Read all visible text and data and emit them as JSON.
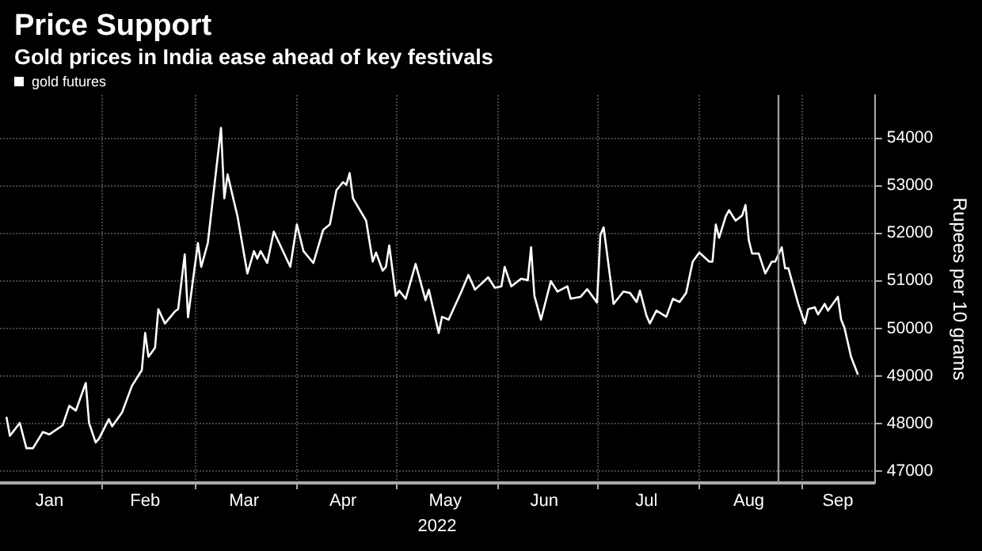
{
  "chart_data": {
    "type": "line",
    "title": "Price Support",
    "subtitle": "Gold prices in India ease ahead of key festivals",
    "xlabel": "2022",
    "ylabel": "Rupees per 10 grams",
    "x": [
      "2022-01-03",
      "2022-01-04",
      "2022-01-07",
      "2022-01-09",
      "2022-01-11",
      "2022-01-14",
      "2022-01-16",
      "2022-01-20",
      "2022-01-22",
      "2022-01-24",
      "2022-01-27",
      "2022-01-28",
      "2022-01-30",
      "2022-01-31",
      "2022-02-03",
      "2022-02-04",
      "2022-02-07",
      "2022-02-10",
      "2022-02-13",
      "2022-02-14",
      "2022-02-15",
      "2022-02-17",
      "2022-02-18",
      "2022-02-20",
      "2022-02-23",
      "2022-02-24",
      "2022-02-26",
      "2022-02-27",
      "2022-03-02",
      "2022-03-03",
      "2022-03-05",
      "2022-03-09",
      "2022-03-10",
      "2022-03-11",
      "2022-03-14",
      "2022-03-17",
      "2022-03-19",
      "2022-03-20",
      "2022-03-21",
      "2022-03-23",
      "2022-03-25",
      "2022-03-30",
      "2022-04-01",
      "2022-04-03",
      "2022-04-06",
      "2022-04-09",
      "2022-04-11",
      "2022-04-13",
      "2022-04-15",
      "2022-04-16",
      "2022-04-17",
      "2022-04-18",
      "2022-04-22",
      "2022-04-24",
      "2022-04-25",
      "2022-04-27",
      "2022-04-28",
      "2022-04-29",
      "2022-05-01",
      "2022-05-02",
      "2022-05-04",
      "2022-05-07",
      "2022-05-10",
      "2022-05-11",
      "2022-05-14",
      "2022-05-15",
      "2022-05-17",
      "2022-05-21",
      "2022-05-23",
      "2022-05-25",
      "2022-05-29",
      "2022-05-31",
      "2022-06-02",
      "2022-06-03",
      "2022-06-05",
      "2022-06-08",
      "2022-06-10",
      "2022-06-11",
      "2022-06-12",
      "2022-06-14",
      "2022-06-17",
      "2022-06-19",
      "2022-06-22",
      "2022-06-23",
      "2022-06-26",
      "2022-06-28",
      "2022-07-01",
      "2022-07-02",
      "2022-07-03",
      "2022-07-06",
      "2022-07-09",
      "2022-07-11",
      "2022-07-13",
      "2022-07-14",
      "2022-07-16",
      "2022-07-17",
      "2022-07-19",
      "2022-07-22",
      "2022-07-24",
      "2022-07-26",
      "2022-07-28",
      "2022-07-30",
      "2022-08-01",
      "2022-08-04",
      "2022-08-05",
      "2022-08-06",
      "2022-08-07",
      "2022-08-09",
      "2022-08-10",
      "2022-08-12",
      "2022-08-14",
      "2022-08-15",
      "2022-08-16",
      "2022-08-17",
      "2022-08-19",
      "2022-08-21",
      "2022-08-23",
      "2022-08-24",
      "2022-08-26",
      "2022-08-27",
      "2022-08-28",
      "2022-08-31",
      "2022-09-02",
      "2022-09-03",
      "2022-09-05",
      "2022-09-06",
      "2022-09-08",
      "2022-09-09",
      "2022-09-12",
      "2022-09-13",
      "2022-09-14",
      "2022-09-16",
      "2022-09-18"
    ],
    "series": [
      {
        "name": "gold futures",
        "color": "#ffffff",
        "values": [
          48120,
          47740,
          48010,
          47480,
          47480,
          47820,
          47770,
          47960,
          48370,
          48270,
          48850,
          48010,
          47600,
          47680,
          48090,
          47940,
          48230,
          48790,
          49120,
          49900,
          49400,
          49590,
          50400,
          50100,
          50350,
          50400,
          51550,
          50230,
          51790,
          51290,
          51790,
          54210,
          52730,
          53230,
          52350,
          51150,
          51620,
          51460,
          51620,
          51370,
          52030,
          51290,
          52180,
          51620,
          51370,
          52070,
          52180,
          52900,
          53070,
          53010,
          53260,
          52730,
          52260,
          51400,
          51590,
          51210,
          51290,
          51740,
          50680,
          50790,
          50620,
          51350,
          50590,
          50810,
          49900,
          50240,
          50180,
          50790,
          51120,
          50810,
          51070,
          50850,
          50880,
          51290,
          50880,
          51040,
          51010,
          51700,
          50680,
          50180,
          50990,
          50770,
          50880,
          50620,
          50660,
          50820,
          50540,
          51960,
          52120,
          50510,
          50770,
          50740,
          50550,
          50790,
          50260,
          50100,
          50370,
          50240,
          50620,
          50550,
          50740,
          51400,
          51590,
          51400,
          51400,
          52180,
          51900,
          52350,
          52480,
          52260,
          52370,
          52590,
          51850,
          51570,
          51570,
          51150,
          51400,
          51400,
          51700,
          51260,
          51260,
          50510,
          50100,
          50400,
          50440,
          50290,
          50510,
          50370,
          50660,
          50180,
          50010,
          49400,
          49040
        ]
      }
    ],
    "xlim": [
      "2022-01-01",
      "2022-09-23"
    ],
    "xticks": [
      {
        "value": "2022-01-16",
        "label": "Jan"
      },
      {
        "value": "2022-02-01",
        "label": null
      },
      {
        "value": "2022-02-14",
        "label": "Feb"
      },
      {
        "value": "2022-03-01",
        "label": null
      },
      {
        "value": "2022-03-16",
        "label": "Mar"
      },
      {
        "value": "2022-04-01",
        "label": null
      },
      {
        "value": "2022-04-15",
        "label": "Apr"
      },
      {
        "value": "2022-05-01",
        "label": null
      },
      {
        "value": "2022-05-16",
        "label": "May"
      },
      {
        "value": "2022-06-01",
        "label": null
      },
      {
        "value": "2022-06-15",
        "label": "Jun"
      },
      {
        "value": "2022-07-01",
        "label": null
      },
      {
        "value": "2022-07-16",
        "label": "Jul"
      },
      {
        "value": "2022-08-01",
        "label": null
      },
      {
        "value": "2022-08-16",
        "label": "Aug"
      },
      {
        "value": "2022-09-01",
        "label": null
      },
      {
        "value": "2022-09-12",
        "label": "Sep"
      }
    ],
    "ylim": [
      46750,
      54900
    ],
    "yticks": [
      47000,
      48000,
      49000,
      50000,
      51000,
      52000,
      53000,
      54000
    ],
    "ref_lines": [
      {
        "axis": "x",
        "value": "2022-08-25",
        "color": "#9a9a9a"
      }
    ],
    "grid": true,
    "legend": "top left",
    "marker": "none",
    "line_style": "solid"
  }
}
